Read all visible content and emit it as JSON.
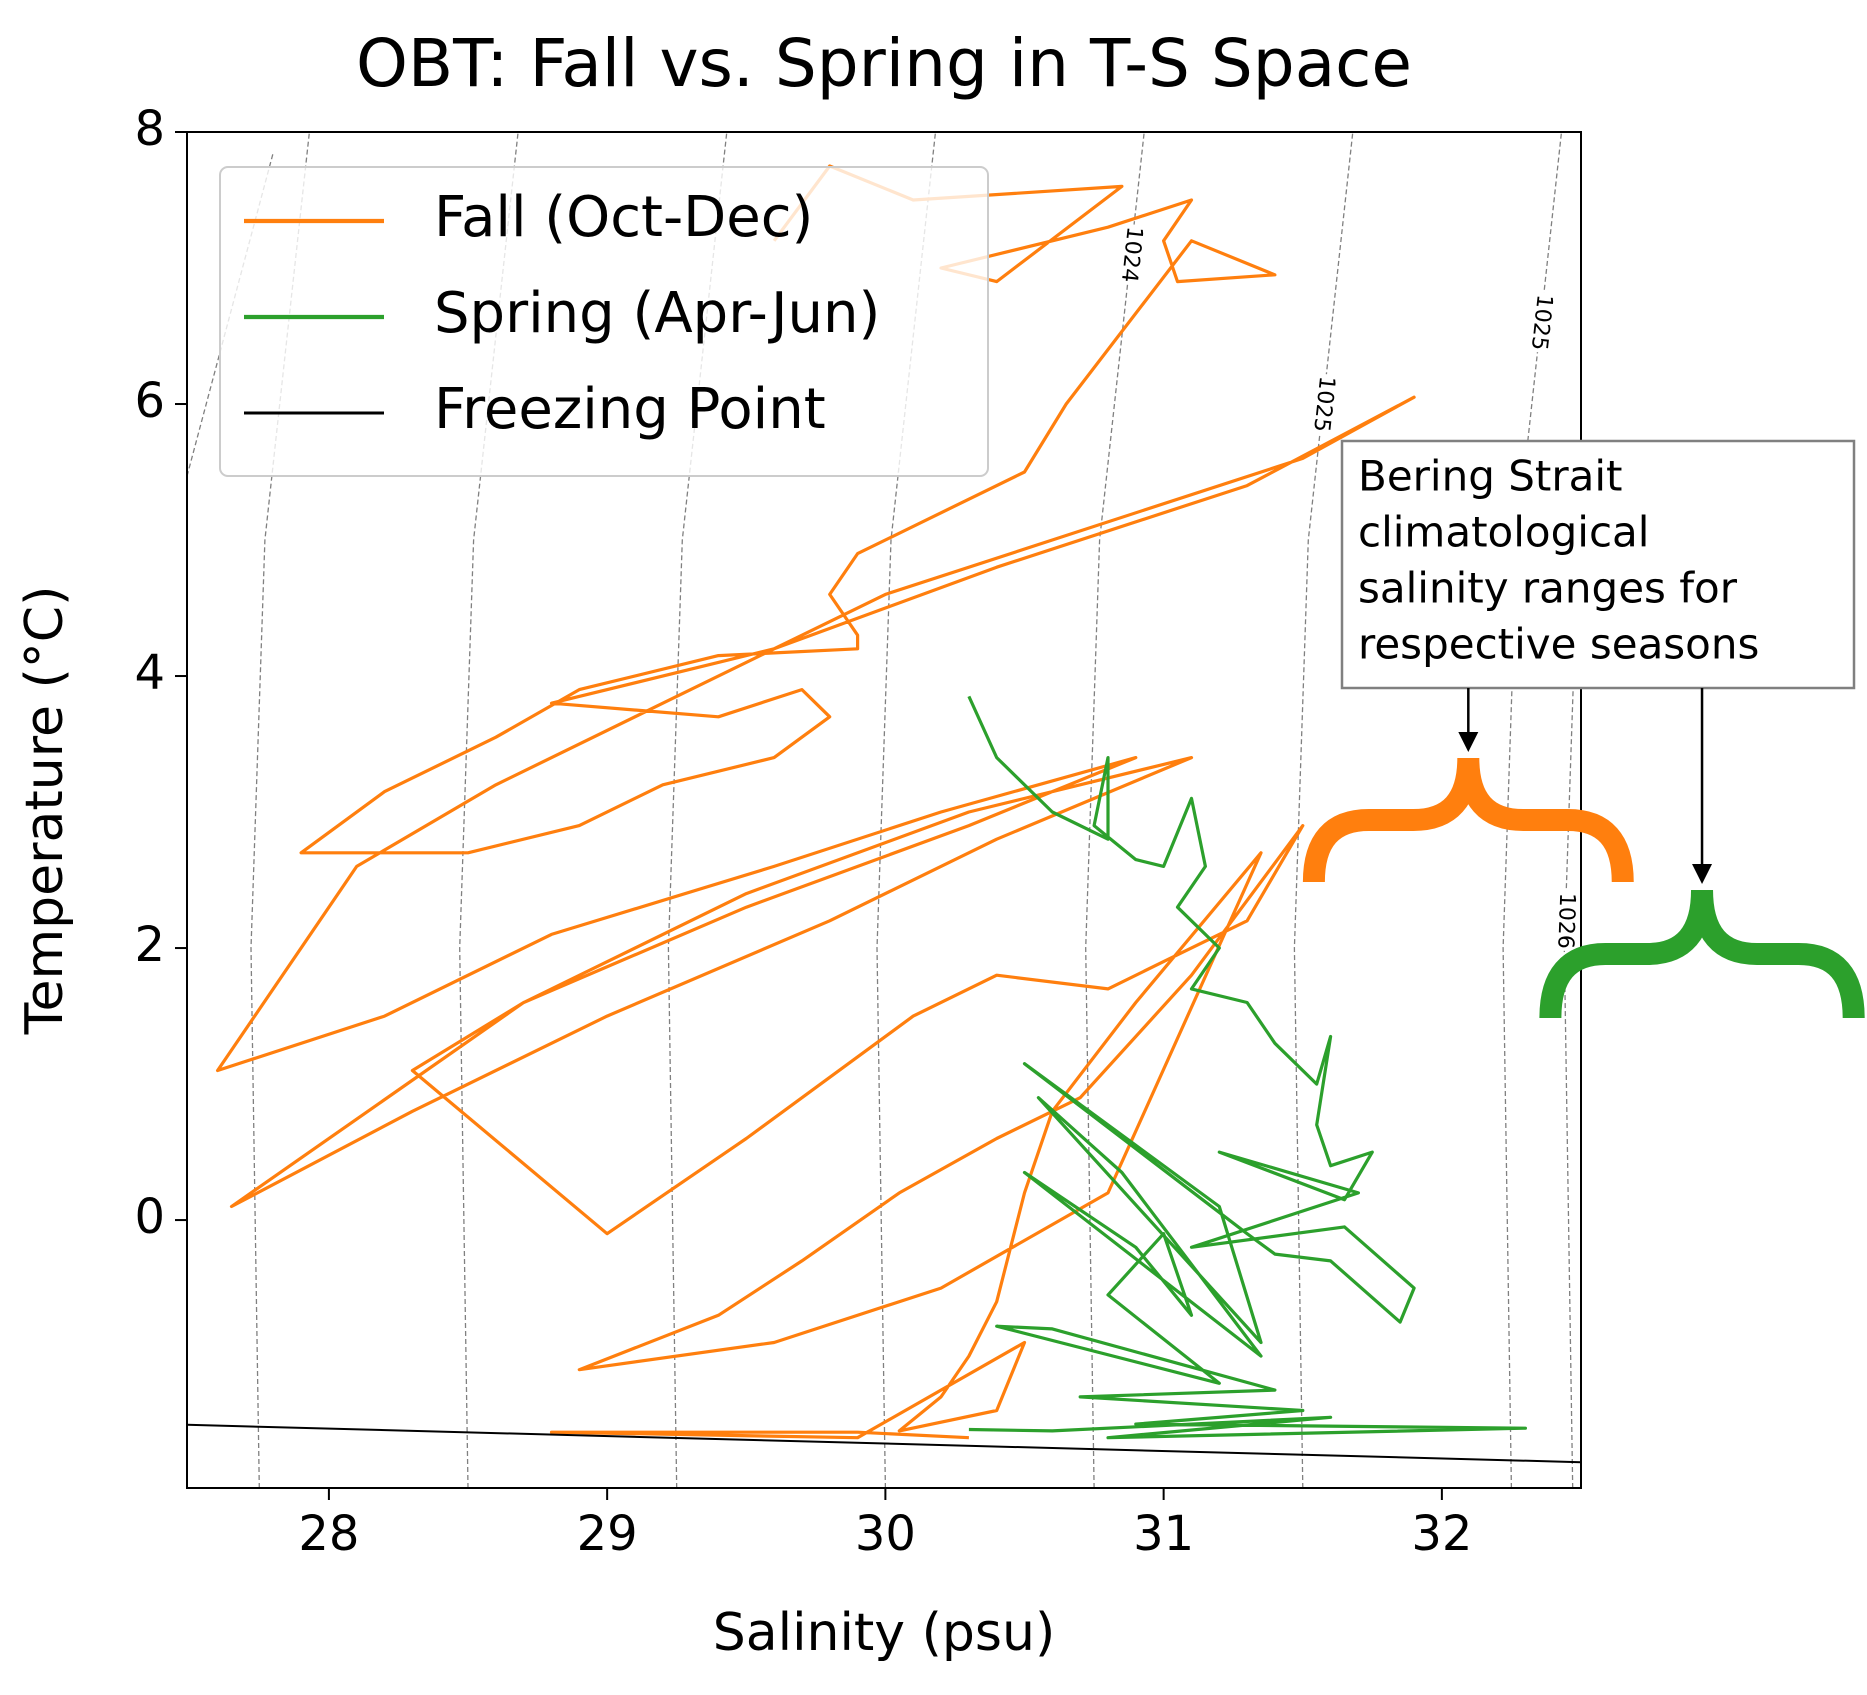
{
  "chart_data": {
    "type": "line",
    "title": "OBT: Fall vs. Spring in T-S Space",
    "xlabel": "Salinity (psu)",
    "ylabel": "Temperature (°C)",
    "xlim": [
      27.49,
      32.5
    ],
    "ylim": [
      -1.97,
      8
    ],
    "xticks": [
      28,
      29,
      30,
      31,
      32
    ],
    "yticks": [
      0,
      2,
      4,
      6,
      8
    ],
    "legend": "upper left",
    "series": [
      {
        "name": "Fall (Oct-Dec)",
        "color": "#ff7f0e",
        "x": [
          29.6,
          29.8,
          30.1,
          30.85,
          30.4,
          30.2,
          30.8,
          31.1,
          31.0,
          31.05,
          31.4,
          31.1,
          30.65,
          30.5,
          30.2,
          29.9,
          29.8,
          29.9,
          29.9,
          29.4,
          28.9,
          28.6,
          28.2,
          27.9,
          28.5,
          28.9,
          29.2,
          29.6,
          29.8,
          29.7,
          29.4,
          28.8,
          29.6,
          30.4,
          31.3,
          31.9,
          31.5,
          30.6,
          30.0,
          29.2,
          28.6,
          28.1,
          27.6,
          28.2,
          28.8,
          29.6,
          30.2,
          30.9,
          30.3,
          29.5,
          28.7,
          27.65,
          28.3,
          29.0,
          29.8,
          30.4,
          31.1,
          30.3,
          29.5,
          28.7,
          28.3,
          29.0,
          29.5,
          30.1,
          30.4,
          30.8,
          31.0,
          31.3,
          31.5,
          31.1,
          30.7,
          30.4,
          30.05,
          29.7,
          29.4,
          28.9,
          29.6,
          30.2,
          30.8,
          31.35,
          30.9,
          30.6,
          30.5,
          30.4,
          30.3,
          30.2,
          30.05,
          30.4,
          30.5,
          29.9,
          28.8,
          29.9,
          30.3
        ],
        "y": [
          7.2,
          7.75,
          7.5,
          7.6,
          6.9,
          7.0,
          7.3,
          7.5,
          7.2,
          6.9,
          6.95,
          7.2,
          6.0,
          5.5,
          5.2,
          4.9,
          4.6,
          4.3,
          4.2,
          4.15,
          3.9,
          3.55,
          3.15,
          2.7,
          2.7,
          2.9,
          3.2,
          3.4,
          3.7,
          3.9,
          3.7,
          3.8,
          4.2,
          4.8,
          5.4,
          6.05,
          5.6,
          5.0,
          4.6,
          3.8,
          3.2,
          2.6,
          1.1,
          1.5,
          2.1,
          2.6,
          3.0,
          3.4,
          2.9,
          2.3,
          1.6,
          0.1,
          0.8,
          1.5,
          2.2,
          2.8,
          3.4,
          3.0,
          2.4,
          1.6,
          1.1,
          -0.1,
          0.6,
          1.5,
          1.8,
          1.7,
          1.9,
          2.2,
          2.9,
          1.8,
          0.9,
          0.6,
          0.2,
          -0.3,
          -0.7,
          -1.1,
          -0.9,
          -0.5,
          0.2,
          2.7,
          1.6,
          0.8,
          0.2,
          -0.6,
          -1.0,
          -1.3,
          -1.55,
          -1.4,
          -0.9,
          -1.6,
          -1.56,
          -1.56,
          -1.6
        ]
      },
      {
        "name": "Spring (Apr-Jun)",
        "color": "#2ca02c",
        "x": [
          30.3,
          30.4,
          30.6,
          30.8,
          30.8,
          30.75,
          30.9,
          31.0,
          31.1,
          31.15,
          31.05,
          31.2,
          31.1,
          31.3,
          31.4,
          31.55,
          31.6,
          31.55,
          31.6,
          31.75,
          31.65,
          31.2,
          31.7,
          31.1,
          31.65,
          31.9,
          31.85,
          31.6,
          31.4,
          31.3,
          30.5,
          31.2,
          31.35,
          30.55,
          30.85,
          31.35,
          30.5,
          30.9,
          31.1,
          31.0,
          30.8,
          31.2,
          30.4,
          30.6,
          31.4,
          30.7,
          31.5,
          30.9,
          32.3,
          30.8,
          31.6,
          30.6,
          30.3
        ],
        "y": [
          3.85,
          3.4,
          3.0,
          2.8,
          3.4,
          2.9,
          2.65,
          2.6,
          3.1,
          2.6,
          2.3,
          2.0,
          1.7,
          1.6,
          1.3,
          1.0,
          1.35,
          0.7,
          0.4,
          0.5,
          0.15,
          0.5,
          0.2,
          -0.2,
          -0.05,
          -0.5,
          -0.75,
          -0.3,
          -0.25,
          -0.1,
          1.15,
          0.1,
          -0.9,
          0.9,
          0.35,
          -1.0,
          0.35,
          -0.2,
          -0.7,
          -0.1,
          -0.55,
          -1.2,
          -0.78,
          -0.8,
          -1.25,
          -1.3,
          -1.4,
          -1.5,
          -1.53,
          -1.6,
          -1.45,
          -1.55,
          -1.54
        ]
      },
      {
        "name": "Freezing Point",
        "color": "#000000",
        "x": [
          27.49,
          32.5
        ],
        "y": [
          -1.505,
          -1.78
        ]
      }
    ],
    "contours": [
      {
        "x": [
          27.49,
          27.8
        ],
        "y": [
          5.47,
          7.85
        ]
      },
      {
        "x": [
          27.75,
          27.72,
          27.77,
          27.93
        ],
        "y": [
          -1.97,
          2,
          5,
          8
        ]
      },
      {
        "x": [
          28.5,
          28.47,
          28.52,
          28.68
        ],
        "y": [
          -1.97,
          2,
          5,
          8
        ]
      },
      {
        "x": [
          29.25,
          29.22,
          29.27,
          29.43
        ],
        "y": [
          -1.97,
          2,
          5,
          8
        ]
      },
      {
        "x": [
          30.0,
          29.97,
          30.02,
          30.18
        ],
        "y": [
          -1.97,
          2,
          5,
          8
        ]
      },
      {
        "x": [
          30.75,
          30.72,
          30.77,
          30.93
        ],
        "y": [
          -1.97,
          2,
          5,
          8
        ],
        "level": 1024
      },
      {
        "x": [
          31.5,
          31.47,
          31.52,
          31.68
        ],
        "y": [
          -1.97,
          2,
          5,
          8
        ],
        "level": 1025
      },
      {
        "x": [
          32.25,
          32.22,
          32.27,
          32.43
        ],
        "y": [
          -1.97,
          2,
          5,
          8
        ],
        "level": 1025
      },
      {
        "x": [
          32.47,
          32.44,
          32.49
        ],
        "y": [
          -1.97,
          2,
          5
        ],
        "level": 1026
      }
    ],
    "annotation": {
      "lines": [
        "Bering Strait",
        "climatological",
        "salinity ranges for",
        "respective seasons"
      ]
    },
    "ranges": [
      {
        "x": [
          31.54,
          32.65
        ],
        "color": "#ff7f0e"
      },
      {
        "x": [
          32.39,
          33.48
        ],
        "color": "#2ca02c"
      }
    ]
  }
}
